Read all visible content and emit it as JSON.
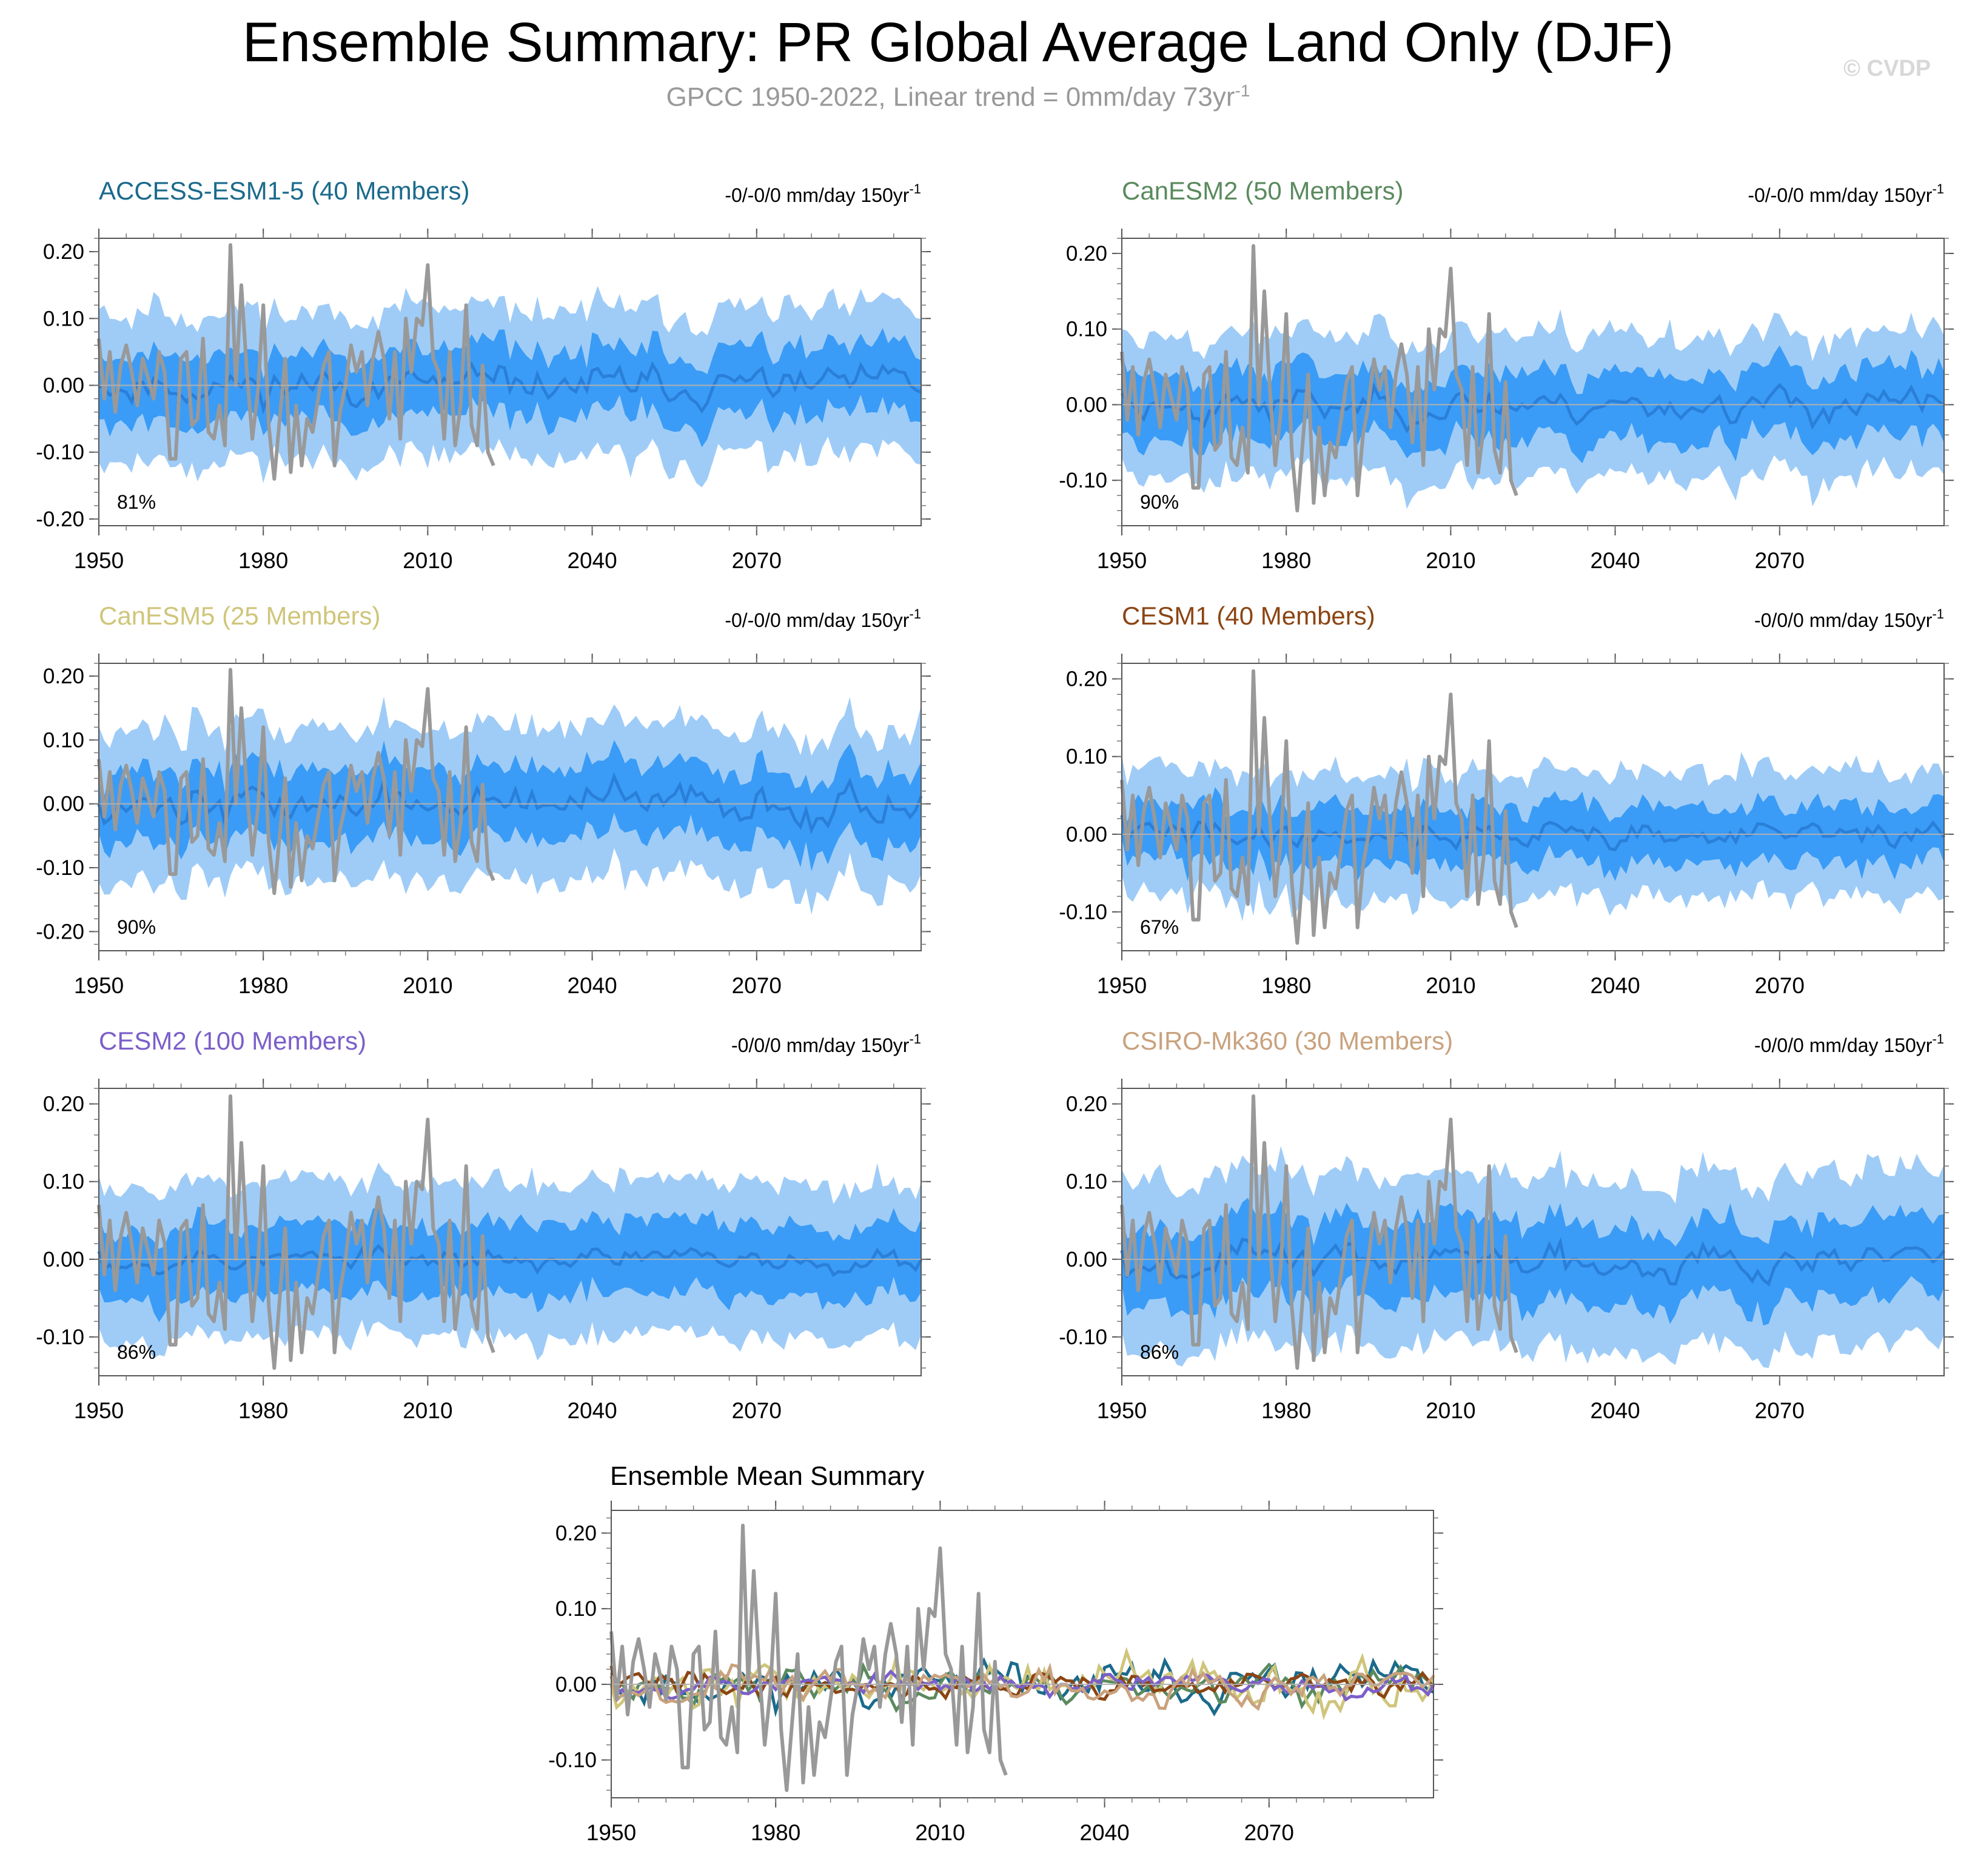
{
  "figure": {
    "title": "Ensemble Summary: PR Global Average Land Only (DJF)",
    "subtitle_main": "GPCC 1950-2022, Linear trend = 0mm/day 73yr",
    "subtitle_sup": "-1",
    "watermark": "© CVDP"
  },
  "colors": {
    "outer_band": "#9fccf7",
    "inner_band": "#3a9cf6",
    "ensemble_mean": "#2a7fd9",
    "observations": "#999999"
  },
  "chart_data": [
    {
      "type": "area",
      "title": "ACCESS-ESM1-5 (40 Members)",
      "title_color": "#1b6a8c",
      "trend_label": "-0/-0/0 mm/day 150yr",
      "trend_sup": "-1",
      "percent_label": "81%",
      "seed": 11,
      "mean_amp": 0.022,
      "inner_half": 0.05,
      "outer_half": 0.1,
      "x_range": [
        1950,
        2100
      ],
      "ylim": [
        -0.21,
        0.22
      ],
      "yticks": [
        -0.2,
        -0.1,
        0.0,
        0.1,
        0.2
      ],
      "ytick_labels": [
        "-0.20",
        "-0.10",
        "0.00",
        "0.10",
        "0.20"
      ],
      "xticks": [
        1950,
        1980,
        2010,
        2040,
        2070
      ],
      "xtick_labels": [
        "1950",
        "1980",
        "2010",
        "2040",
        "2070"
      ],
      "series": [
        "outer band (10th-90th pct)",
        "inner band (25th-75th pct)",
        "ensemble mean",
        "GPCC observations"
      ]
    },
    {
      "type": "area",
      "title": "CanESM2 (50 Members)",
      "title_color": "#5a8a5e",
      "trend_label": "-0/-0/0 mm/day 150yr",
      "trend_sup": "-1",
      "percent_label": "90%",
      "seed": 23,
      "mean_amp": 0.018,
      "inner_half": 0.045,
      "outer_half": 0.085,
      "x_range": [
        1950,
        2100
      ],
      "ylim": [
        -0.16,
        0.22
      ],
      "yticks": [
        -0.1,
        0.0,
        0.1,
        0.2
      ],
      "ytick_labels": [
        "-0.10",
        "0.00",
        "0.10",
        "0.20"
      ],
      "xticks": [
        1950,
        1980,
        2010,
        2040,
        2070
      ],
      "xtick_labels": [
        "1950",
        "1980",
        "2010",
        "2040",
        "2070"
      ],
      "series": [
        "outer band (10th-90th pct)",
        "inner band (25th-75th pct)",
        "ensemble mean",
        "GPCC observations"
      ]
    },
    {
      "type": "area",
      "title": "CanESM5 (25 Members)",
      "title_color": "#cfc57a",
      "trend_label": "-0/-0/0 mm/day 150yr",
      "trend_sup": "-1",
      "percent_label": "90%",
      "seed": 37,
      "mean_amp": 0.025,
      "inner_half": 0.055,
      "outer_half": 0.11,
      "x_range": [
        1950,
        2100
      ],
      "ylim": [
        -0.23,
        0.22
      ],
      "yticks": [
        -0.2,
        -0.1,
        0.0,
        0.1,
        0.2
      ],
      "ytick_labels": [
        "-0.20",
        "-0.10",
        "0.00",
        "0.10",
        "0.20"
      ],
      "xticks": [
        1950,
        1980,
        2010,
        2040,
        2070
      ],
      "xtick_labels": [
        "1950",
        "1980",
        "2010",
        "2040",
        "2070"
      ],
      "series": [
        "outer band (10th-90th pct)",
        "inner band (25th-75th pct)",
        "ensemble mean",
        "GPCC observations"
      ]
    },
    {
      "type": "area",
      "title": "CESM1 (40 Members)",
      "title_color": "#8b4513",
      "trend_label": "-0/0/0 mm/day 150yr",
      "trend_sup": "-1",
      "percent_label": "67%",
      "seed": 41,
      "mean_amp": 0.015,
      "inner_half": 0.035,
      "outer_half": 0.07,
      "x_range": [
        1950,
        2100
      ],
      "ylim": [
        -0.15,
        0.22
      ],
      "yticks": [
        -0.1,
        0.0,
        0.1,
        0.2
      ],
      "ytick_labels": [
        "-0.10",
        "0.00",
        "0.10",
        "0.20"
      ],
      "xticks": [
        1950,
        1980,
        2010,
        2040,
        2070
      ],
      "xtick_labels": [
        "1950",
        "1980",
        "2010",
        "2040",
        "2070"
      ],
      "series": [
        "outer band (10th-90th pct)",
        "inner band (25th-75th pct)",
        "ensemble mean",
        "GPCC observations"
      ]
    },
    {
      "type": "area",
      "title": "CESM2 (100 Members)",
      "title_color": "#7b5fc9",
      "trend_label": "-0/0/0 mm/day 150yr",
      "trend_sup": "-1",
      "percent_label": "86%",
      "seed": 53,
      "mean_amp": 0.012,
      "inner_half": 0.045,
      "outer_half": 0.09,
      "x_range": [
        1950,
        2100
      ],
      "ylim": [
        -0.15,
        0.22
      ],
      "yticks": [
        -0.1,
        0.0,
        0.1,
        0.2
      ],
      "ytick_labels": [
        "-0.10",
        "0.00",
        "0.10",
        "0.20"
      ],
      "xticks": [
        1950,
        1980,
        2010,
        2040,
        2070
      ],
      "xtick_labels": [
        "1950",
        "1980",
        "2010",
        "2040",
        "2070"
      ],
      "series": [
        "outer band (10th-90th pct)",
        "inner band (25th-75th pct)",
        "ensemble mean",
        "GPCC observations"
      ]
    },
    {
      "type": "area",
      "title": "CSIRO-Mk360 (30 Members)",
      "title_color": "#c9a27e",
      "trend_label": "-0/0/0 mm/day 150yr",
      "trend_sup": "-1",
      "percent_label": "86%",
      "seed": 67,
      "mean_amp": 0.018,
      "inner_half": 0.05,
      "outer_half": 0.1,
      "x_range": [
        1950,
        2100
      ],
      "ylim": [
        -0.15,
        0.22
      ],
      "yticks": [
        -0.1,
        0.0,
        0.1,
        0.2
      ],
      "ytick_labels": [
        "-0.10",
        "0.00",
        "0.10",
        "0.20"
      ],
      "xticks": [
        1950,
        1980,
        2010,
        2040,
        2070
      ],
      "xtick_labels": [
        "1950",
        "1980",
        "2010",
        "2040",
        "2070"
      ],
      "series": [
        "outer band (10th-90th pct)",
        "inner band (25th-75th pct)",
        "ensemble mean",
        "GPCC observations"
      ]
    },
    {
      "type": "line",
      "title": "Ensemble Mean Summary",
      "title_color": "#000000",
      "x_range": [
        1950,
        2100
      ],
      "ylim": [
        -0.15,
        0.23
      ],
      "yticks": [
        -0.1,
        0.0,
        0.1,
        0.2
      ],
      "ytick_labels": [
        "-0.10",
        "0.00",
        "0.10",
        "0.20"
      ],
      "xticks": [
        1950,
        1980,
        2010,
        2040,
        2070
      ],
      "xtick_labels": [
        "1950",
        "1980",
        "2010",
        "2040",
        "2070"
      ],
      "series_colors": [
        "#1b6a8c",
        "#5a8a5e",
        "#cfc57a",
        "#8b4513",
        "#7b5fc9",
        "#c9a27e"
      ]
    }
  ],
  "observations": {
    "years": [
      1950,
      2022
    ],
    "values": [
      0.07,
      -0.02,
      0.05,
      -0.04,
      0.03,
      0.06,
      0.02,
      -0.03,
      0.04,
      0.01,
      -0.02,
      0.05,
      0.02,
      -0.11,
      -0.11,
      0.04,
      0.05,
      -0.06,
      -0.05,
      0.07,
      -0.07,
      -0.08,
      -0.03,
      -0.09,
      0.21,
      0.0,
      0.15,
      0.02,
      -0.08,
      -0.01,
      0.12,
      -0.06,
      -0.14,
      -0.05,
      0.04,
      -0.13,
      -0.03,
      -0.12,
      -0.05,
      -0.07,
      -0.02,
      0.03,
      0.05,
      -0.12,
      -0.04,
      0.0,
      0.06,
      0.02,
      0.05,
      -0.03,
      0.04,
      0.08,
      0.04,
      -0.05,
      0.05,
      -0.08,
      0.1,
      0.02,
      0.1,
      0.09,
      0.18,
      0.04,
      0.02,
      -0.08,
      0.05,
      -0.09,
      -0.03,
      0.12,
      -0.06,
      -0.09,
      0.03,
      -0.1,
      -0.12
    ]
  }
}
